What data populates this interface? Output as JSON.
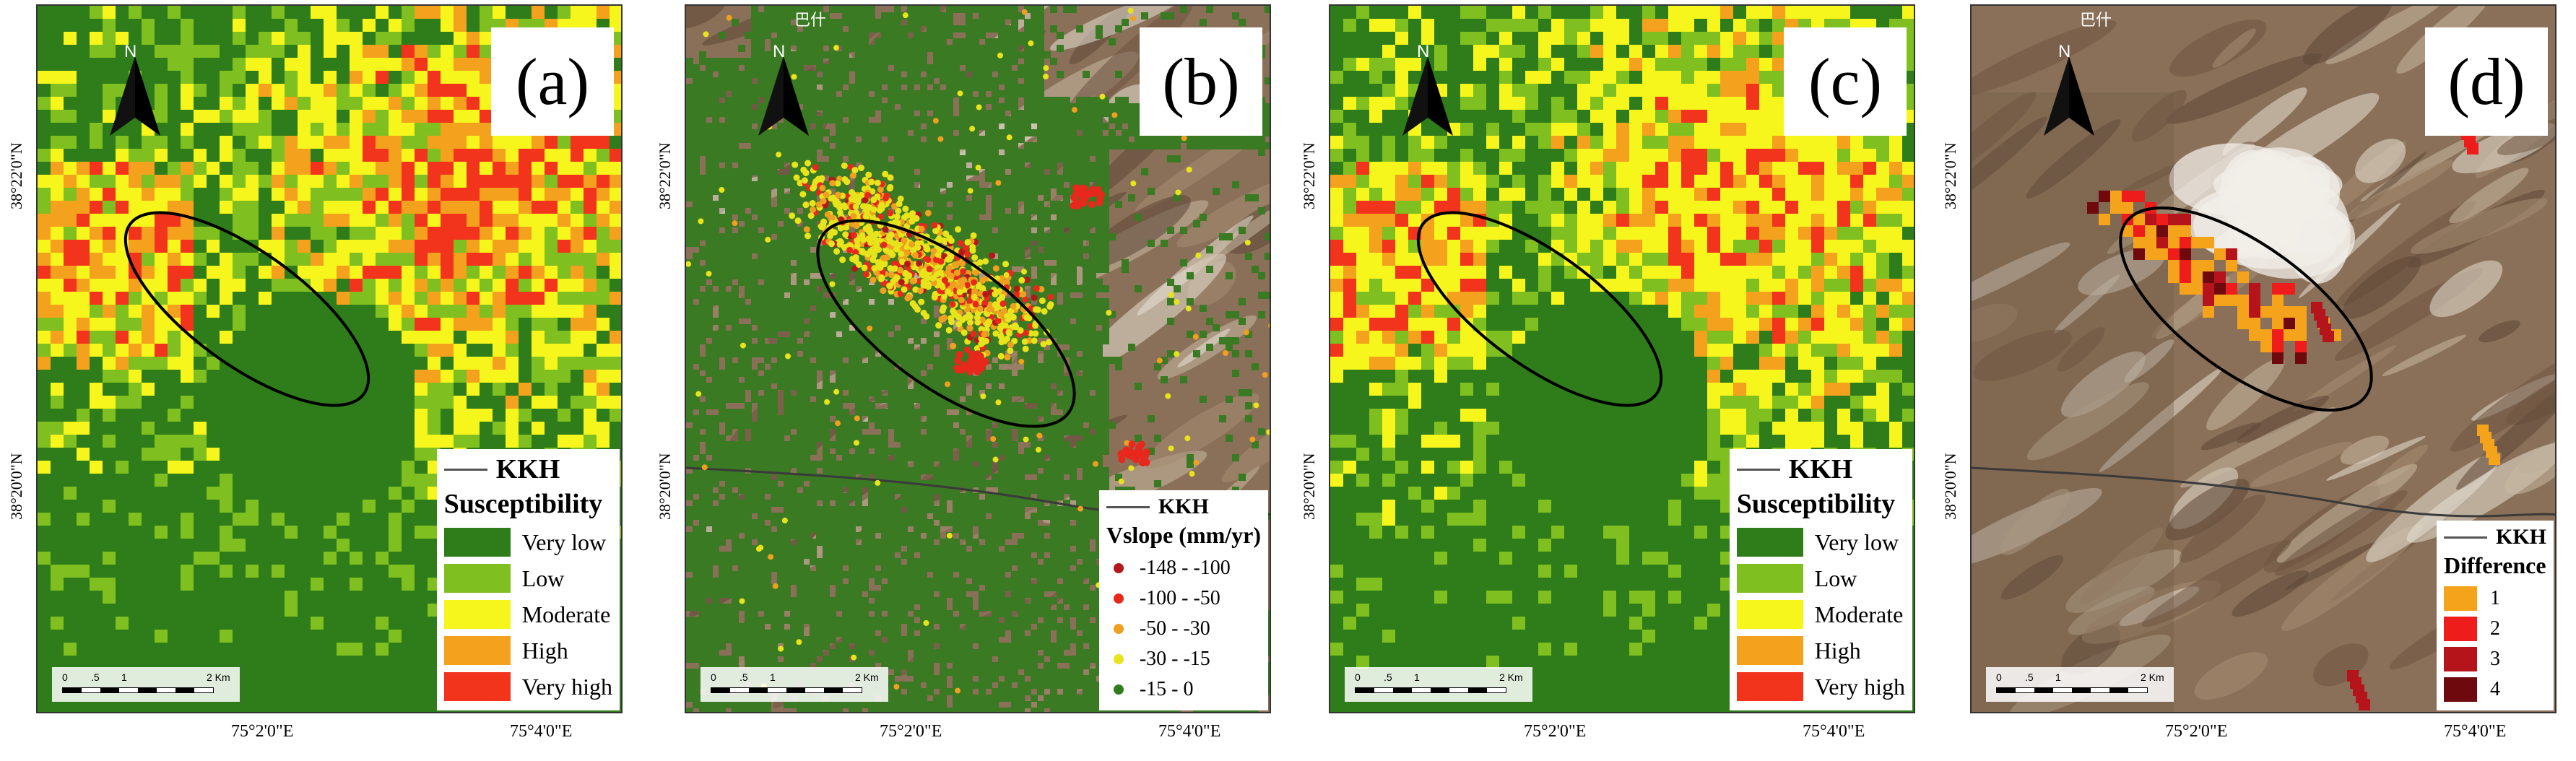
{
  "panels": [
    {
      "id": "a",
      "label": "(a)",
      "kind": "susceptibility",
      "background": "raster"
    },
    {
      "id": "b",
      "label": "(b)",
      "kind": "vslope",
      "background": "satellite"
    },
    {
      "id": "c",
      "label": "(c)",
      "kind": "susceptibility",
      "background": "raster"
    },
    {
      "id": "d",
      "label": "(d)",
      "kind": "difference",
      "background": "satellite"
    }
  ],
  "north_letter": "N",
  "legend_kkh": "KKH",
  "susceptibility_legend": {
    "title": "Susceptibility",
    "items": [
      {
        "label": "Very low",
        "color": "#2e7d1a"
      },
      {
        "label": "Low",
        "color": "#7fbf1f"
      },
      {
        "label": "Moderate",
        "color": "#f6f51c"
      },
      {
        "label": "High",
        "color": "#f4a11e"
      },
      {
        "label": "Very high",
        "color": "#f2341c"
      }
    ]
  },
  "vslope_legend": {
    "title": "Vslope (mm/yr)",
    "items": [
      {
        "label": "-148 - -100",
        "color": "#b3181a"
      },
      {
        "label": "-100 - -50",
        "color": "#e8281c"
      },
      {
        "label": "-50 - -30",
        "color": "#f0a020"
      },
      {
        "label": "-30 - -15",
        "color": "#e8e41c"
      },
      {
        "label": "-15 - 0",
        "color": "#2f7d1e"
      }
    ]
  },
  "difference_legend": {
    "title": "Difference",
    "items": [
      {
        "label": "1",
        "color": "#f5a31a"
      },
      {
        "label": "2",
        "color": "#ef1c1c"
      },
      {
        "label": "3",
        "color": "#b5141b"
      },
      {
        "label": "4",
        "color": "#6e0a0e"
      }
    ]
  },
  "scalebar": {
    "ticks": [
      "0",
      ".5",
      "1",
      "2 Km"
    ]
  },
  "y_axis_labels": [
    "38°22'0\"N",
    "38°20'0\"N"
  ],
  "x_axis_labels": [
    "75°2'0\"E",
    "75°4'0\"E"
  ],
  "place_label": "巴什"
}
